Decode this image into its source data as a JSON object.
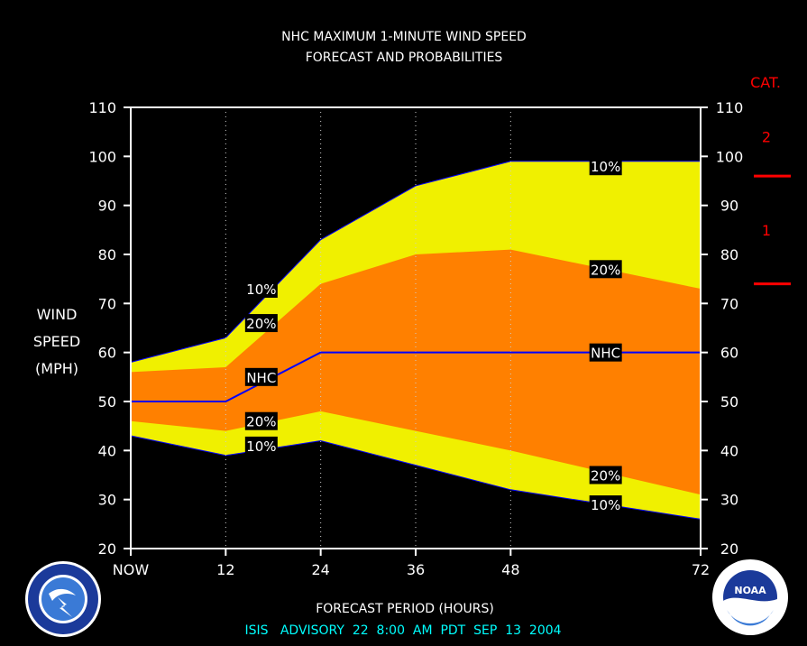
{
  "chart_data": {
    "type": "area",
    "title": [
      "NHC MAXIMUM 1-MINUTE WIND SPEED",
      "FORECAST AND PROBABILITIES"
    ],
    "xlabel": "FORECAST PERIOD (HOURS)",
    "ylabel": [
      "WIND",
      "SPEED",
      "(MPH)"
    ],
    "x_ticks": [
      "NOW",
      "12",
      "24",
      "36",
      "48",
      "72"
    ],
    "x_tick_values": [
      0,
      12,
      24,
      36,
      48,
      72
    ],
    "y_ticks": [
      "20",
      "30",
      "40",
      "50",
      "60",
      "70",
      "80",
      "90",
      "100",
      "110"
    ],
    "xlim": [
      0,
      72
    ],
    "ylim": [
      20,
      110
    ],
    "x": [
      0,
      12,
      24,
      36,
      48,
      72
    ],
    "series": [
      {
        "name": "10%",
        "values": [
          58,
          63,
          83,
          94,
          99,
          99
        ]
      },
      {
        "name": "20%",
        "values": [
          56,
          57,
          74,
          80,
          81,
          73
        ]
      },
      {
        "name": "NHC",
        "values": [
          50,
          50,
          60,
          60,
          60,
          60
        ]
      },
      {
        "name": "20%",
        "values": [
          46,
          44,
          48,
          44,
          40,
          31
        ]
      },
      {
        "name": "10%",
        "values": [
          43,
          39,
          42,
          37,
          32,
          26
        ]
      }
    ],
    "band_labels": [
      {
        "text": "10%",
        "x": 16.5,
        "y": 73
      },
      {
        "text": "20%",
        "x": 16.5,
        "y": 66
      },
      {
        "text": "NHC",
        "x": 16.5,
        "y": 55
      },
      {
        "text": "20%",
        "x": 16.5,
        "y": 46
      },
      {
        "text": "10%",
        "x": 16.5,
        "y": 41
      },
      {
        "text": "10%",
        "x": 60,
        "y": 98
      },
      {
        "text": "20%",
        "x": 60,
        "y": 77
      },
      {
        "text": "NHC",
        "x": 60,
        "y": 60
      },
      {
        "text": "20%",
        "x": 60,
        "y": 35
      },
      {
        "text": "10%",
        "x": 60,
        "y": 29
      }
    ],
    "colors": {
      "outer_band": "#f0f000",
      "inner_band": "#ff8000",
      "nhc_line": "#0000ff",
      "grid": "#cccccc",
      "category": "#ff0000",
      "footer": "#00ffff"
    },
    "category": {
      "header": "CAT.",
      "labels": [
        {
          "text": "2",
          "y": 104
        },
        {
          "text": "1",
          "y": 85
        }
      ],
      "thresholds": [
        96,
        74
      ]
    }
  },
  "footer": "ISIS   ADVISORY  22  8:00  AM  PDT  SEP  13  2004",
  "logos": {
    "left": {
      "name": "nws-logo",
      "text": "NATIONAL WEATHER SERVICE"
    },
    "right": {
      "name": "noaa-logo",
      "text": "NOAA"
    }
  }
}
